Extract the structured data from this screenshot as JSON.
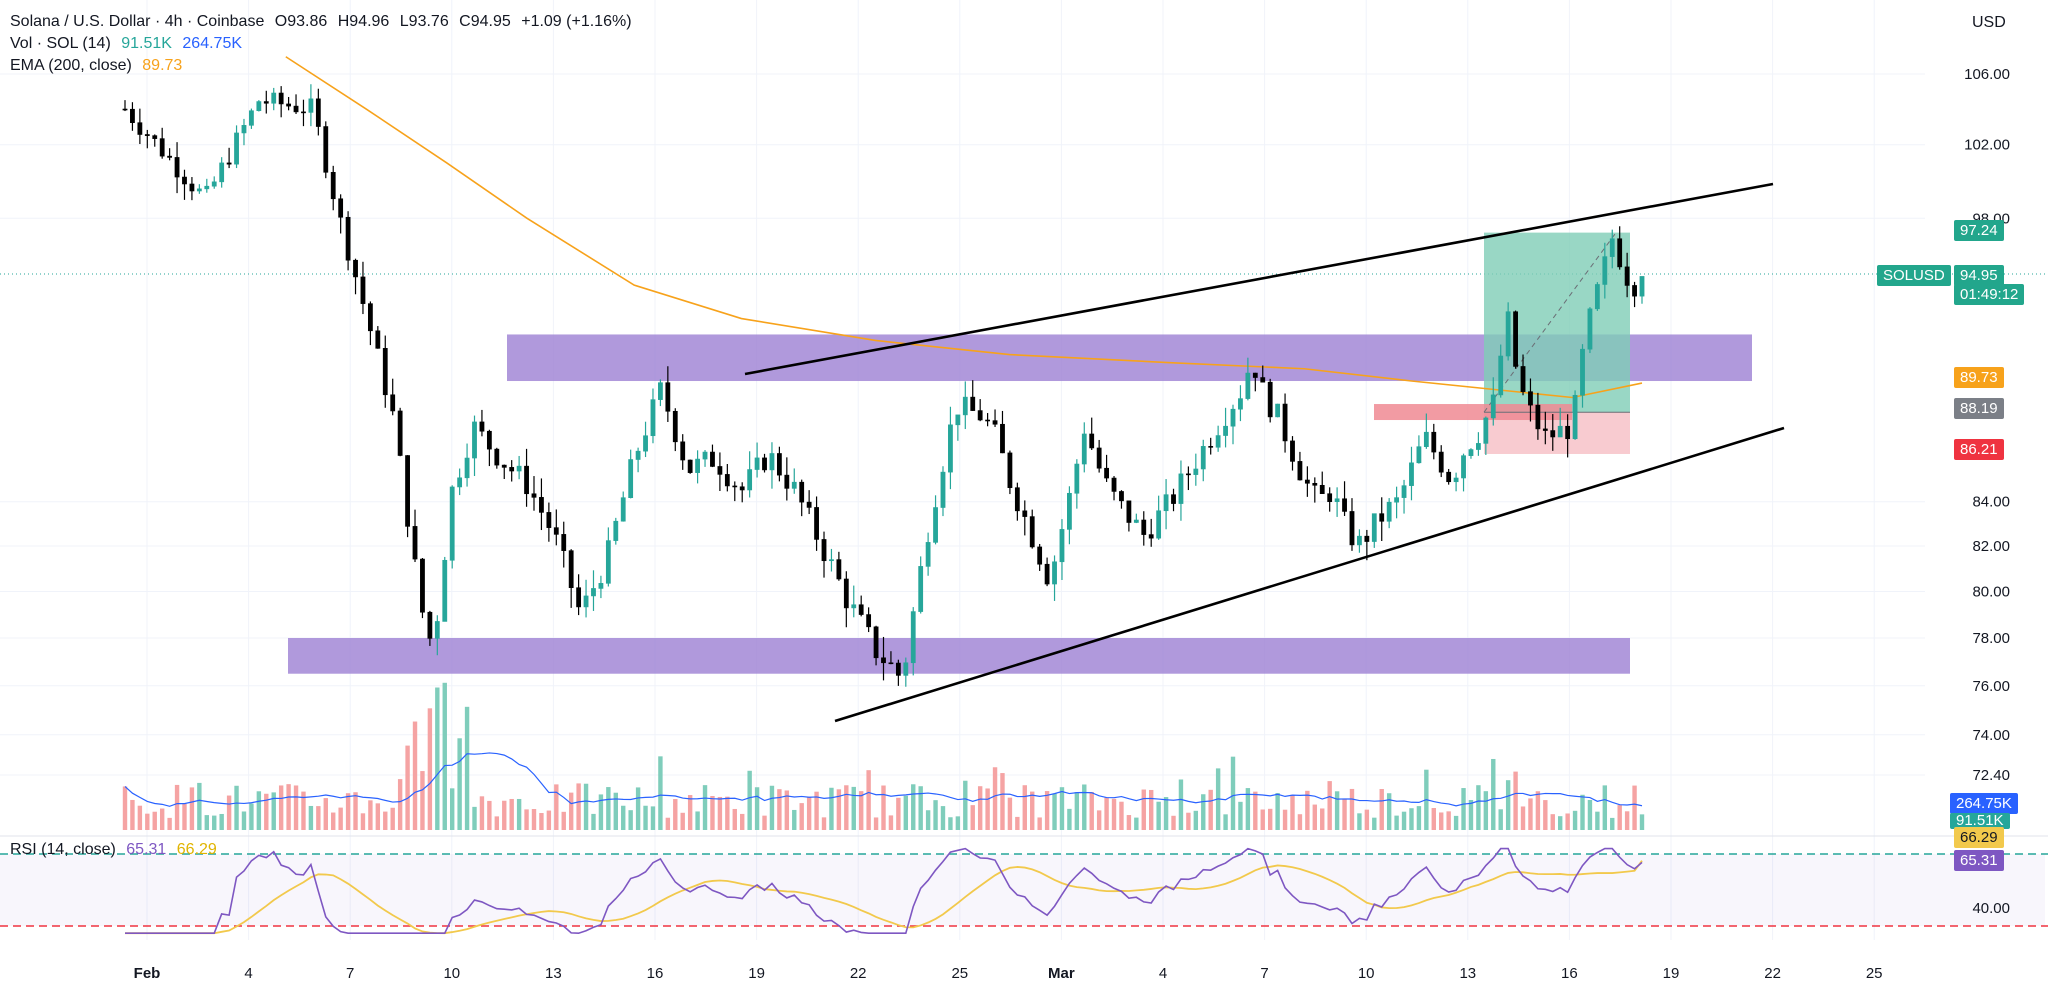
{
  "header": {
    "symbol_title": "Solana / U.S. Dollar · 4h · Coinbase",
    "open": "O93.86",
    "high": "H94.96",
    "low": "L93.76",
    "close": "C94.95",
    "change": "+1.09 (+1.16%)",
    "vol_label": "Vol · SOL (14)",
    "vol_value_1": "91.51K",
    "vol_value_2": "264.75K",
    "ema_label": "EMA (200, close)",
    "ema_value": "89.73",
    "rsi_label": "RSI (14, close)",
    "rsi_value": "65.31",
    "rsi_ma_value": "66.29",
    "currency": "USD"
  },
  "price_tags": {
    "target": "97.24",
    "last_symbol": "SOLUSD",
    "last_price": "94.95",
    "countdown": "01:49:12",
    "ema": "89.73",
    "entry": "88.19",
    "stop": "86.21",
    "vol_ma": "264.75K",
    "vol": "91.51K",
    "rsi_ma": "66.29",
    "rsi": "65.31"
  },
  "colors": {
    "up": "#26a69a",
    "down": "#000000",
    "ema": "#f7a21b",
    "zone": "#9c7fd3",
    "target_zone": "#7fcdb7",
    "stop_zone": "#f4a8b0",
    "rsi": "#7e57c2",
    "rsi_ma": "#f2c94c",
    "vol_ma": "#2962ff"
  },
  "chart_data": [
    {
      "type": "candlestick",
      "title": "Solana / U.S. Dollar · 4h · Coinbase",
      "y_ticks": [
        "106.00",
        "102.00",
        "98.00",
        "84.00",
        "82.00",
        "80.00",
        "78.00",
        "76.00",
        "74.00",
        "72.40"
      ],
      "x_ticks": [
        "Feb",
        "4",
        "7",
        "10",
        "13",
        "16",
        "19",
        "22",
        "25",
        "Mar",
        "4",
        "7",
        "10",
        "13",
        "16",
        "19",
        "22",
        "25"
      ],
      "ylim": [
        72.4,
        107.5
      ],
      "scale": "log",
      "price_path": [
        [
          0,
          104.0
        ],
        [
          3,
          99.0
        ],
        [
          5,
          104.5
        ],
        [
          7,
          104.0
        ],
        [
          8,
          98.0
        ],
        [
          9,
          93.0
        ],
        [
          10,
          88.0
        ],
        [
          11,
          79.5
        ],
        [
          11.5,
          77.5
        ],
        [
          12.2,
          84.5
        ],
        [
          13,
          87.5
        ],
        [
          14,
          86.0
        ],
        [
          15,
          84.8
        ],
        [
          16,
          82.5
        ],
        [
          17,
          79.0
        ],
        [
          18,
          81.5
        ],
        [
          19,
          86.0
        ],
        [
          20,
          89.3
        ],
        [
          21,
          85.5
        ],
        [
          22,
          86.0
        ],
        [
          23,
          84.5
        ],
        [
          24,
          86.2
        ],
        [
          25,
          84.5
        ],
        [
          26,
          82.0
        ],
        [
          27,
          79.5
        ],
        [
          28,
          77.5
        ],
        [
          29,
          76.3
        ],
        [
          30,
          83.0
        ],
        [
          31,
          88.5
        ],
        [
          32,
          88.0
        ],
        [
          32.5,
          87.0
        ],
        [
          33,
          85.0
        ],
        [
          34,
          82.0
        ],
        [
          34.5,
          80.5
        ],
        [
          35.3,
          84.5
        ],
        [
          35.8,
          87.5
        ],
        [
          36.5,
          85.0
        ],
        [
          37,
          84.0
        ],
        [
          38,
          82.5
        ],
        [
          39,
          84.0
        ],
        [
          40,
          86.0
        ],
        [
          41,
          88.0
        ],
        [
          41.8,
          89.5
        ],
        [
          42,
          91.0
        ],
        [
          42.5,
          89.0
        ],
        [
          43,
          88.0
        ],
        [
          44,
          85.0
        ],
        [
          44.5,
          84.0
        ],
        [
          45,
          84.5
        ],
        [
          45.5,
          83.0
        ],
        [
          46,
          82.0
        ],
        [
          47,
          83.5
        ],
        [
          47.5,
          84.0
        ],
        [
          48,
          85.5
        ],
        [
          48.5,
          87.0
        ],
        [
          49,
          86.0
        ],
        [
          49.5,
          85.0
        ],
        [
          50,
          86.5
        ],
        [
          50.5,
          87.2
        ],
        [
          51.2,
          89.0
        ],
        [
          51.5,
          93.5
        ],
        [
          52,
          89.5
        ],
        [
          52.5,
          88.0
        ],
        [
          53,
          87.0
        ],
        [
          54,
          87.5
        ],
        [
          54.5,
          92.0
        ],
        [
          55,
          94.5
        ],
        [
          55.5,
          97.0
        ],
        [
          56,
          95.0
        ],
        [
          56.3,
          94.5
        ],
        [
          56.6,
          94.95
        ]
      ],
      "series_ema": {
        "name": "EMA (200, close)",
        "path": [
          [
            6,
            107.0
          ],
          [
            9,
            104.0
          ],
          [
            12,
            101.0
          ],
          [
            15,
            98.0
          ],
          [
            19,
            94.5
          ],
          [
            23,
            92.8
          ],
          [
            28,
            91.7
          ],
          [
            33,
            91.0
          ],
          [
            39,
            90.6
          ],
          [
            44,
            90.3
          ],
          [
            48,
            89.7
          ],
          [
            51,
            89.3
          ],
          [
            54,
            88.9
          ],
          [
            56.6,
            89.6
          ]
        ]
      },
      "horizontal_zones": [
        {
          "low": 89.7,
          "high": 92.0
        },
        {
          "low": 76.5,
          "high": 78.0
        }
      ],
      "trendlines": [
        {
          "from": [
            26.6,
            89.5
          ],
          "to": [
            60.8,
            98.2
          ]
        },
        {
          "from": [
            29.7,
            74.5
          ],
          "to": [
            61.2,
            88.6
          ]
        }
      ],
      "position": {
        "entry": 88.19,
        "target": 97.24,
        "stop": 86.21,
        "start": 51.2,
        "end": 55.9
      }
    },
    {
      "type": "bar",
      "title": "Vol · SOL (14)",
      "series": [
        {
          "name": "Volume MA",
          "value": "264.75K"
        },
        {
          "name": "Volume",
          "value": "91.51K"
        }
      ]
    },
    {
      "type": "line",
      "title": "RSI (14, close)",
      "y_ticks": [
        "40.00"
      ],
      "levels": [
        70,
        30
      ],
      "series": [
        {
          "name": "RSI",
          "last": 65.31
        },
        {
          "name": "RSI MA",
          "last": 66.29
        }
      ]
    }
  ]
}
